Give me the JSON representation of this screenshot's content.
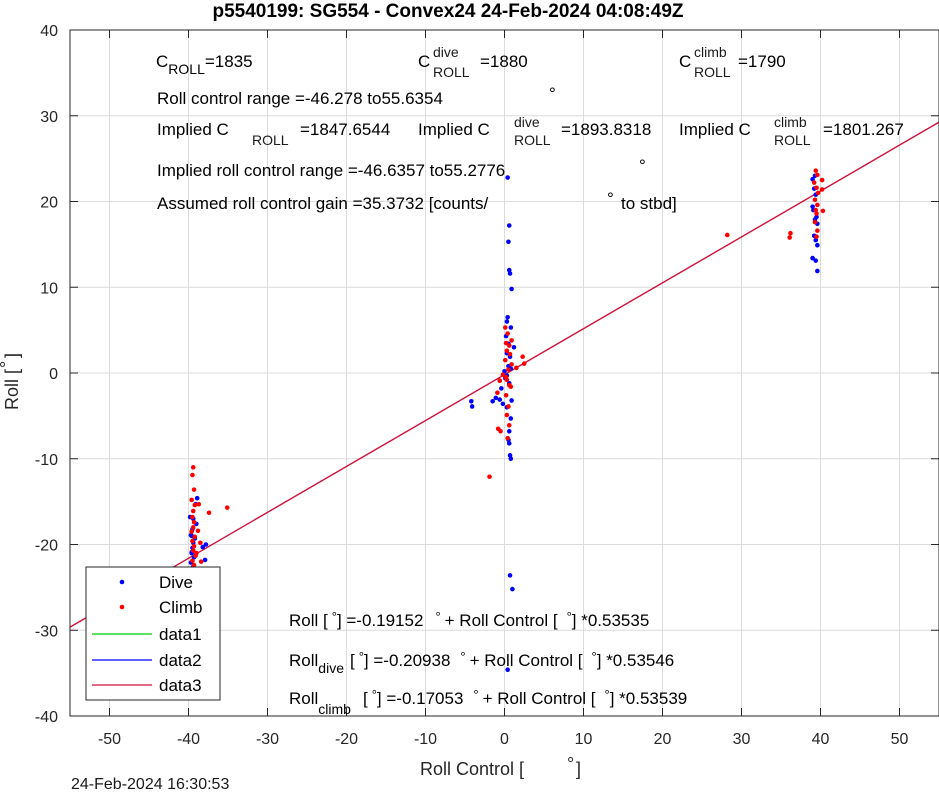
{
  "chart_data": {
    "type": "scatter",
    "title": "p5540199: SG554 - Convex24 24-Feb-2024 04:08:49Z",
    "xlabel": "Roll Control [",
    "xlabel_deg": "°",
    "xlabel_end": "]",
    "ylabel": "Roll [",
    "ylabel_deg": "°",
    "ylabel_end": "]",
    "xlim": [
      -55,
      55
    ],
    "ylim": [
      -40,
      40
    ],
    "xticks": [
      -50,
      -40,
      -30,
      -20,
      -10,
      0,
      10,
      20,
      30,
      40,
      50
    ],
    "xtick_labels": [
      "-50",
      "-40",
      "-30",
      "-20",
      "-10",
      "0",
      "10",
      "20",
      "30",
      "40",
      "50"
    ],
    "yticks": [
      -40,
      -30,
      -20,
      -10,
      0,
      10,
      20,
      30,
      40
    ],
    "ytick_labels": [
      "-40",
      "-30",
      "-20",
      "-10",
      "0",
      "10",
      "20",
      "30",
      "40"
    ],
    "grid": true,
    "legend_position": "bottom-left",
    "timestamp": "24-Feb-2024 16:30:53",
    "series": [
      {
        "name": "Dive",
        "color": "#0000ff",
        "marker": "dot",
        "points": [
          [
            -39.6,
            -23.8
          ],
          [
            -39.5,
            -23.2
          ],
          [
            -39.4,
            -22.6
          ],
          [
            -39.7,
            -22.1
          ],
          [
            -39.3,
            -21.5
          ],
          [
            -39.6,
            -21.0
          ],
          [
            -39.5,
            -20.4
          ],
          [
            -39.4,
            -19.8
          ],
          [
            -39.2,
            -19.3
          ],
          [
            -39.7,
            -18.9
          ],
          [
            -39.5,
            -18.2
          ],
          [
            -39.0,
            -17.6
          ],
          [
            -39.4,
            -17.0
          ],
          [
            -39.8,
            -16.8
          ],
          [
            -39.6,
            -20.9
          ],
          [
            -39.3,
            -22.9
          ],
          [
            -38.2,
            -20.3
          ],
          [
            -37.8,
            -20.0
          ],
          [
            -39.1,
            -15.3
          ],
          [
            -38.9,
            -14.6
          ],
          [
            -37.9,
            -21.8
          ],
          [
            -39.6,
            -19.0
          ],
          [
            0.4,
            22.8
          ],
          [
            0.6,
            17.2
          ],
          [
            0.5,
            15.3
          ],
          [
            0.6,
            12.0
          ],
          [
            0.7,
            11.6
          ],
          [
            0.9,
            9.8
          ],
          [
            0.4,
            6.5
          ],
          [
            0.3,
            6.0
          ],
          [
            0.8,
            5.3
          ],
          [
            0.2,
            4.3
          ],
          [
            0.5,
            3.4
          ],
          [
            1.2,
            3.0
          ],
          [
            0.3,
            2.3
          ],
          [
            0.7,
            1.9
          ],
          [
            0.5,
            0.8
          ],
          [
            0.1,
            -0.6
          ],
          [
            0.6,
            -1.2
          ],
          [
            -0.4,
            -1.8
          ],
          [
            -1.1,
            -2.9
          ],
          [
            -1.5,
            -3.3
          ],
          [
            -4.2,
            -3.3
          ],
          [
            -4.1,
            -3.9
          ],
          [
            -0.6,
            -3.1
          ],
          [
            -0.2,
            -3.6
          ],
          [
            0.9,
            -3.2
          ],
          [
            0.3,
            -4.0
          ],
          [
            0.8,
            -5.3
          ],
          [
            0.6,
            -6.8
          ],
          [
            0.5,
            -7.8
          ],
          [
            0.6,
            -8.2
          ],
          [
            0.7,
            -9.6
          ],
          [
            0.8,
            -10.0
          ],
          [
            0.7,
            -23.6
          ],
          [
            1.0,
            -25.2
          ],
          [
            0.4,
            -34.6
          ],
          [
            0.0,
            0.2
          ],
          [
            0.3,
            -0.3
          ],
          [
            0.8,
            0.5
          ],
          [
            39.0,
            22.6
          ],
          [
            39.2,
            21.5
          ],
          [
            39.4,
            20.8
          ],
          [
            39.0,
            19.4
          ],
          [
            39.5,
            18.2
          ],
          [
            39.3,
            17.9
          ],
          [
            39.6,
            17.4
          ],
          [
            39.2,
            16.0
          ],
          [
            39.4,
            15.5
          ],
          [
            39.6,
            14.9
          ],
          [
            39.0,
            13.4
          ],
          [
            39.4,
            13.1
          ],
          [
            39.6,
            11.9
          ],
          [
            39.1,
            19.0
          ],
          [
            39.3,
            23.0
          ]
        ]
      },
      {
        "name": "Climb",
        "color": "#ff0000",
        "marker": "dot",
        "points": [
          [
            -39.4,
            -11.0
          ],
          [
            -39.5,
            -11.9
          ],
          [
            -39.3,
            -13.6
          ],
          [
            -39.6,
            -14.8
          ],
          [
            -39.2,
            -15.4
          ],
          [
            -39.4,
            -16.1
          ],
          [
            -39.5,
            -16.8
          ],
          [
            -39.3,
            -17.4
          ],
          [
            -39.4,
            -18.0
          ],
          [
            -39.6,
            -18.5
          ],
          [
            -39.2,
            -19.1
          ],
          [
            -39.5,
            -19.6
          ],
          [
            -39.3,
            -20.2
          ],
          [
            -39.4,
            -20.7
          ],
          [
            -39.1,
            -21.3
          ],
          [
            -39.5,
            -21.9
          ],
          [
            -39.3,
            -22.4
          ],
          [
            -39.2,
            -22.9
          ],
          [
            -38.5,
            -19.8
          ],
          [
            -37.4,
            -16.3
          ],
          [
            -38.7,
            -15.3
          ],
          [
            -35.1,
            -15.7
          ],
          [
            -39.0,
            -21.0
          ],
          [
            -38.8,
            -18.4
          ],
          [
            -38.4,
            -22.0
          ],
          [
            0.1,
            5.3
          ],
          [
            0.4,
            4.6
          ],
          [
            0.2,
            3.5
          ],
          [
            0.6,
            3.2
          ],
          [
            0.3,
            2.6
          ],
          [
            0.7,
            2.2
          ],
          [
            0.1,
            1.5
          ],
          [
            0.9,
            1.0
          ],
          [
            0.5,
            0.4
          ],
          [
            -0.2,
            -0.2
          ],
          [
            0.3,
            -0.8
          ],
          [
            0.6,
            -1.4
          ],
          [
            -0.6,
            -0.9
          ],
          [
            -0.9,
            -2.3
          ],
          [
            0.8,
            -1.6
          ],
          [
            0.2,
            -2.6
          ],
          [
            0.5,
            -3.9
          ],
          [
            0.3,
            -4.9
          ],
          [
            0.6,
            -6.1
          ],
          [
            -0.8,
            -6.5
          ],
          [
            -0.5,
            -6.8
          ],
          [
            0.4,
            -7.6
          ],
          [
            -1.9,
            -12.1
          ],
          [
            2.3,
            1.9
          ],
          [
            2.5,
            1.1
          ],
          [
            1.5,
            0.6
          ],
          [
            0.9,
            3.8
          ],
          [
            0.2,
            -0.5
          ],
          [
            28.2,
            16.1
          ],
          [
            36.2,
            16.3
          ],
          [
            36.1,
            15.8
          ],
          [
            39.4,
            23.6
          ],
          [
            39.6,
            23.1
          ],
          [
            39.2,
            22.2
          ],
          [
            39.5,
            21.6
          ],
          [
            39.7,
            21.0
          ],
          [
            39.3,
            20.2
          ],
          [
            39.6,
            19.6
          ],
          [
            39.4,
            19.0
          ],
          [
            39.5,
            18.6
          ],
          [
            39.3,
            17.6
          ],
          [
            39.6,
            16.6
          ],
          [
            39.5,
            15.9
          ],
          [
            40.2,
            22.5
          ],
          [
            40.2,
            21.4
          ],
          [
            40.3,
            18.9
          ]
        ]
      },
      {
        "name": "data1",
        "color": "#00cc00",
        "marker": "line",
        "points": []
      },
      {
        "name": "data2",
        "color": "#0000ff",
        "marker": "line",
        "points": []
      },
      {
        "name": "data3",
        "color": "#d0103a",
        "marker": "line",
        "fit": {
          "intercept": -0.19152,
          "slope": 0.53535
        }
      }
    ],
    "annotations": {
      "c_roll": {
        "main": "C",
        "sub": "ROLL",
        "value": "=1835"
      },
      "c_roll_dive": {
        "main": "C",
        "sup": "dive",
        "sub": "ROLL",
        "value": "=1880"
      },
      "c_roll_climb": {
        "main": "C",
        "sup": "climb",
        "sub": "ROLL",
        "value": "=1790"
      },
      "roll_control_range": "Roll control range =-46.278 to55.6354",
      "implied_c_roll": {
        "prefix": "Implied C",
        "sub": "ROLL",
        "value": "=1847.6544"
      },
      "implied_c_roll_dive": {
        "prefix": "Implied C",
        "sup": "dive",
        "sub": "ROLL",
        "value": "=1893.8318"
      },
      "implied_c_roll_climb": {
        "prefix": "Implied C",
        "sup": "climb",
        "sub": "ROLL",
        "value": "=1801.267"
      },
      "implied_roll_control_range": "Implied roll control range =-46.6357 to55.2776",
      "assumed_gain": "Assumed roll control gain =35.3732 [counts/",
      "assumed_gain_end": "to stbd]",
      "deg": "°",
      "fit_all": {
        "a": "Roll [",
        "b": "] =-0.19152",
        "c": "+ Roll Control [",
        "d": "] *0.53535"
      },
      "fit_dive": {
        "a": "Roll",
        "sub": "dive",
        "b": "[",
        "c": "] =-0.20938",
        "d": "+ Roll Control [",
        "e": "] *0.53546"
      },
      "fit_climb": {
        "a": "Roll",
        "sub": "climb",
        "b": "[",
        "c": "] =-0.17053",
        "d": "+ Roll Control [",
        "e": "] *0.53539"
      }
    }
  }
}
